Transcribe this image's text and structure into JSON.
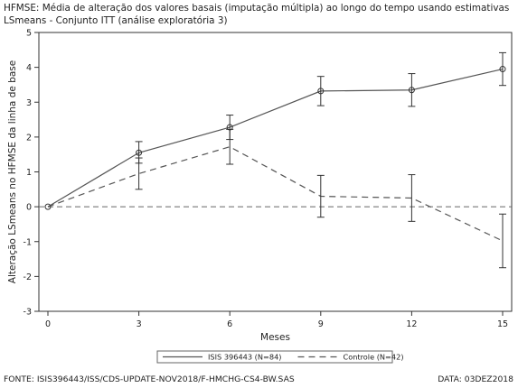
{
  "chart_data": {
    "type": "line",
    "title": [
      "HFMSE: Média de alteração dos valores basais (imputação múltipla) ao longo do tempo usando estimativas",
      "LSmeans - Conjunto ITT (análise exploratória 3)"
    ],
    "xlabel": "Meses",
    "ylabel": "Alteração LSmeans no HFMSE da linha de base",
    "x": [
      0,
      3,
      6,
      9,
      12,
      15
    ],
    "xlim": [
      0,
      15
    ],
    "ylim": [
      -3,
      5
    ],
    "xticks": [
      "0",
      "3",
      "6",
      "9",
      "12",
      "15"
    ],
    "yticks": [
      "-3",
      "-2",
      "-1",
      "0",
      "1",
      "2",
      "3",
      "4",
      "5"
    ],
    "reference_line_y": 0,
    "grid": false,
    "legend_position": "bottom-center",
    "series": [
      {
        "name": "ISIS 396443 (N=84)",
        "style": "solid",
        "markers": "circle",
        "color": "#555555",
        "values": [
          0,
          1.55,
          2.28,
          3.32,
          3.35,
          3.95
        ],
        "lower": [
          0,
          1.25,
          1.93,
          2.9,
          2.88,
          3.48
        ],
        "upper": [
          0,
          1.87,
          2.63,
          3.74,
          3.82,
          4.42
        ]
      },
      {
        "name": "Controle (N=42)",
        "style": "dashed",
        "markers": "none",
        "color": "#555555",
        "values": [
          0,
          0.95,
          1.72,
          0.3,
          0.25,
          -0.98
        ],
        "lower": [
          0,
          0.5,
          1.22,
          -0.3,
          -0.42,
          -1.75
        ],
        "upper": [
          0,
          1.4,
          2.22,
          0.9,
          0.92,
          -0.21
        ]
      }
    ]
  },
  "footer": {
    "source": "FONTE: ISIS396443/ISS/CDS-UPDATE-NOV2018/F-HMCHG-CS4-BW.SAS",
    "date": "DATA: 03DEZ2018"
  }
}
